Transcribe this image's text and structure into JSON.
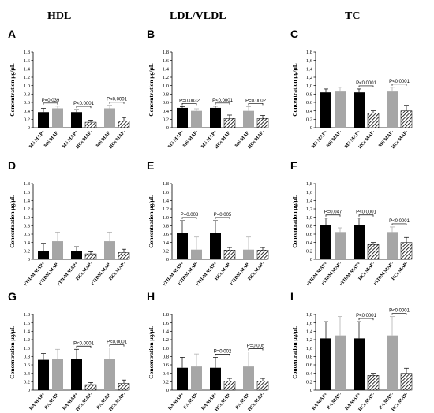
{
  "columns": [
    "HDL",
    "LDL/VLDL",
    "TC"
  ],
  "chart_data": [
    {
      "panel": "A",
      "type": "bar",
      "ylabel": "Concentration μg/μL",
      "ylim": [
        0,
        1.8
      ],
      "yticks": [
        "0",
        "0.2",
        "0.4",
        "0.6",
        "0.8",
        "1.0",
        "1.2",
        "1.4",
        "1.6",
        "1.8"
      ],
      "categories": [
        "MS MAP+",
        "MS MAP-",
        "MS MAP+",
        "HCs MAP-",
        "MS MAP-",
        "HCs MAP-"
      ],
      "fills": [
        "black",
        "gray",
        "black",
        "hatch",
        "gray",
        "hatch"
      ],
      "values": [
        0.37,
        0.46,
        0.37,
        0.13,
        0.46,
        0.16
      ],
      "errors": [
        0.09,
        0.05,
        0.06,
        0.05,
        0.07,
        0.08
      ],
      "comparisons": [
        {
          "bars": [
            0,
            1
          ],
          "label": "P=0.039"
        },
        {
          "bars": [
            2,
            3
          ],
          "label": "P<0.0001"
        },
        {
          "bars": [
            4,
            5
          ],
          "label": "P<0.0001"
        }
      ]
    },
    {
      "panel": "B",
      "type": "bar",
      "ylabel": "Concentration μg/μL",
      "ylim": [
        0,
        1.8
      ],
      "yticks": [
        "0",
        "0.2",
        "0.4",
        "0.6",
        "0.8",
        "1.0",
        "1.2",
        "1.4",
        "1.6",
        "1.8"
      ],
      "categories": [
        "MS MAP+",
        "MS MAP-",
        "MS MAP+",
        "HCs MAP-",
        "MS MAP-",
        "HCs MAP-"
      ],
      "fills": [
        "black",
        "gray",
        "black",
        "hatch",
        "gray",
        "hatch"
      ],
      "values": [
        0.47,
        0.4,
        0.47,
        0.22,
        0.4,
        0.22
      ],
      "errors": [
        0.03,
        0.05,
        0.04,
        0.08,
        0.1,
        0.07
      ],
      "comparisons": [
        {
          "bars": [
            0,
            1
          ],
          "label": "P=0.0032"
        },
        {
          "bars": [
            2,
            3
          ],
          "label": "P<0.0001"
        },
        {
          "bars": [
            4,
            5
          ],
          "label": "P=0.0002"
        }
      ]
    },
    {
      "panel": "C",
      "type": "bar",
      "ylabel": "Concentration μg/μL",
      "ylim": [
        0,
        1.8
      ],
      "yticks": [
        "0",
        "0.2",
        "0.4",
        "0.6",
        "0.8",
        "1,0",
        "1,2",
        "1,4",
        "1,6",
        "1,8"
      ],
      "categories": [
        "MS MAP+",
        "MS MAP-",
        "MS MAP+",
        "HCs MAP-",
        "MS MAP-",
        "HCs MAP-"
      ],
      "fills": [
        "black",
        "gray",
        "black",
        "hatch",
        "gray",
        "hatch"
      ],
      "values": [
        0.84,
        0.86,
        0.84,
        0.35,
        0.86,
        0.4
      ],
      "errors": [
        0.08,
        0.1,
        0.08,
        0.05,
        0.1,
        0.13
      ],
      "comparisons": [
        {
          "bars": [
            2,
            3
          ],
          "label": "P<0.0001"
        },
        {
          "bars": [
            4,
            5
          ],
          "label": "P<0.0001"
        }
      ]
    },
    {
      "panel": "D",
      "type": "bar",
      "ylabel": "Concentration μg/μL",
      "ylim": [
        0,
        1.8
      ],
      "yticks": [
        "0",
        "0.2",
        "0.4",
        "0.6",
        "0.8",
        "1.0",
        "1.2",
        "1.4",
        "1.6",
        "1.8"
      ],
      "categories": [
        "rTIDM MAP+",
        "rTIDM MAP-",
        "rTIDM MAP+",
        "HCs MAP-",
        "rTIDM MAP-",
        "HCs MAP-"
      ],
      "fills": [
        "black",
        "gray",
        "black",
        "hatch",
        "gray",
        "hatch"
      ],
      "values": [
        0.2,
        0.43,
        0.2,
        0.13,
        0.43,
        0.16
      ],
      "errors": [
        0.18,
        0.22,
        0.1,
        0.05,
        0.22,
        0.08
      ],
      "comparisons": []
    },
    {
      "panel": "E",
      "type": "bar",
      "ylabel": "Concentration μg/μL",
      "ylim": [
        0,
        1.8
      ],
      "yticks": [
        "0",
        "0.2",
        "0.4",
        "0.6",
        "0.8",
        "1.0",
        "1.2",
        "1.4",
        "1.6",
        "1.8"
      ],
      "categories": [
        "rTIDM MAP+",
        "rTIDM MAP-",
        "rTIDM MAP+",
        "HCs MAP-",
        "rTIDM MAP-",
        "HCs MAP-"
      ],
      "fills": [
        "black",
        "gray",
        "black",
        "hatch",
        "gray",
        "hatch"
      ],
      "values": [
        0.62,
        0.23,
        0.62,
        0.22,
        0.23,
        0.22
      ],
      "errors": [
        0.3,
        0.3,
        0.3,
        0.06,
        0.3,
        0.06
      ],
      "comparisons": [
        {
          "bars": [
            0,
            1
          ],
          "label": "P=0.008"
        },
        {
          "bars": [
            2,
            3
          ],
          "label": "P=0.005"
        }
      ]
    },
    {
      "panel": "F",
      "type": "bar",
      "ylabel": "Concentration μg/μL",
      "ylim": [
        0,
        1.8
      ],
      "yticks": [
        "0",
        "0.2",
        "0.4",
        "0.6",
        "0.8",
        "1,0",
        "1,2",
        "1,4",
        "1,6",
        "1,8"
      ],
      "categories": [
        "rTIDM MAP+",
        "rTIDM MAP-",
        "rTIDM MAP+",
        "HCs MAP-",
        "rTIDM MAP-",
        "HCs MAP-"
      ],
      "fills": [
        "black",
        "gray",
        "black",
        "hatch",
        "gray",
        "hatch"
      ],
      "values": [
        0.81,
        0.65,
        0.81,
        0.35,
        0.65,
        0.4
      ],
      "errors": [
        0.17,
        0.1,
        0.17,
        0.05,
        0.12,
        0.12
      ],
      "comparisons": [
        {
          "bars": [
            0,
            1
          ],
          "label": "P=0.047"
        },
        {
          "bars": [
            2,
            3
          ],
          "label": "P<0.0001"
        },
        {
          "bars": [
            4,
            5
          ],
          "label": "P<0.0001"
        }
      ]
    },
    {
      "panel": "G",
      "type": "bar",
      "ylabel": "Concentration μg/μL",
      "ylim": [
        0,
        1.8
      ],
      "yticks": [
        "0",
        "0.2",
        "0.4",
        "0.6",
        "0.8",
        "1.0",
        "1.2",
        "1.4",
        "1.6",
        "1.8"
      ],
      "categories": [
        "RA MAP+",
        "RA MAP-",
        "RA MAP+",
        "HCs MAP-",
        "RA MAP-",
        "HCs MAP-"
      ],
      "fills": [
        "black",
        "gray",
        "black",
        "hatch",
        "gray",
        "hatch"
      ],
      "values": [
        0.72,
        0.75,
        0.75,
        0.13,
        0.75,
        0.16
      ],
      "errors": [
        0.15,
        0.22,
        0.22,
        0.05,
        0.25,
        0.08
      ],
      "comparisons": [
        {
          "bars": [
            2,
            3
          ],
          "label": "P<0.0001"
        },
        {
          "bars": [
            4,
            5
          ],
          "label": "P<0.0001"
        }
      ]
    },
    {
      "panel": "H",
      "type": "bar",
      "ylabel": "Concentration μg/μL",
      "ylim": [
        0,
        1.8
      ],
      "yticks": [
        "0",
        "0.2",
        "0.4",
        "0.6",
        "0.8",
        "1.0",
        "1.2",
        "1.4",
        "1.6",
        "1.8"
      ],
      "categories": [
        "RA MAP+",
        "RA MAP-",
        "RA MAP+",
        "HCs MAP-",
        "RA MAP-",
        "HCs MAP-"
      ],
      "fills": [
        "black",
        "gray",
        "black",
        "hatch",
        "gray",
        "hatch"
      ],
      "values": [
        0.53,
        0.56,
        0.53,
        0.22,
        0.56,
        0.22
      ],
      "errors": [
        0.25,
        0.3,
        0.25,
        0.06,
        0.35,
        0.06
      ],
      "comparisons": [
        {
          "bars": [
            2,
            3
          ],
          "label": "P=0.002"
        },
        {
          "bars": [
            4,
            5
          ],
          "label": "P=0.005"
        }
      ]
    },
    {
      "panel": "I",
      "type": "bar",
      "ylabel": "Concentration μg/μL",
      "ylim": [
        0,
        1.8
      ],
      "yticks": [
        "0",
        "0.2",
        "0.4",
        "0.6",
        "0.8",
        "1,0",
        "1,2",
        "1,4",
        "1,6",
        "1,8"
      ],
      "categories": [
        "RA MAP+",
        "RA MAP-",
        "RA MAP+",
        "HCs MAP-",
        "RA MAP-",
        "HCs MAP-"
      ],
      "fills": [
        "black",
        "gray",
        "black",
        "hatch",
        "gray",
        "hatch"
      ],
      "values": [
        1.23,
        1.3,
        1.23,
        0.35,
        1.3,
        0.4
      ],
      "errors": [
        0.4,
        0.45,
        0.4,
        0.05,
        0.45,
        0.12
      ],
      "comparisons": [
        {
          "bars": [
            2,
            3
          ],
          "label": "P<0.0001"
        },
        {
          "bars": [
            4,
            5
          ],
          "label": "P<0.0001"
        }
      ]
    }
  ]
}
